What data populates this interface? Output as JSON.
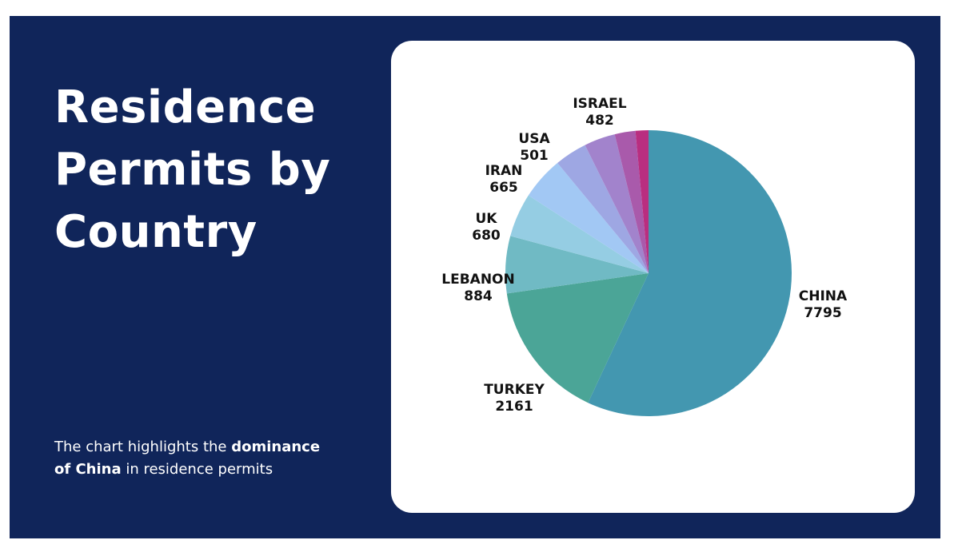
{
  "slide": {
    "background": "#10255a",
    "title_lines": [
      "Residence",
      "Permits by",
      "Country"
    ],
    "caption": {
      "part1": "The chart highlights the ",
      "bold1": "dominance",
      "bold2": "of China",
      "part2": " in residence permits"
    }
  },
  "chart_data": {
    "type": "pie",
    "title": "Residence Permits by Country",
    "start_angle_deg": 0,
    "direction": "clockwise",
    "categories": [
      "CHINA",
      "TURKEY",
      "LEBANON",
      "UK",
      "IRAN",
      "USA",
      "ISRAEL",
      "",
      ""
    ],
    "values": [
      7795,
      2161,
      884,
      680,
      665,
      501,
      482,
      320,
      200
    ],
    "colors": [
      "#4397b0",
      "#4ba597",
      "#70bac4",
      "#95cde3",
      "#a2c8f4",
      "#9ea7e3",
      "#a283cc",
      "#a95aab",
      "#b92e80",
      "#c82a4c"
    ],
    "labels_shown": [
      {
        "name": "CHINA",
        "value": "7795"
      },
      {
        "name": "TURKEY",
        "value": "2161"
      },
      {
        "name": "LEBANON",
        "value": "884"
      },
      {
        "name": "UK",
        "value": "680"
      },
      {
        "name": "IRAN",
        "value": "665"
      },
      {
        "name": "USA",
        "value": "501"
      },
      {
        "name": "ISRAEL",
        "value": "482"
      }
    ]
  }
}
